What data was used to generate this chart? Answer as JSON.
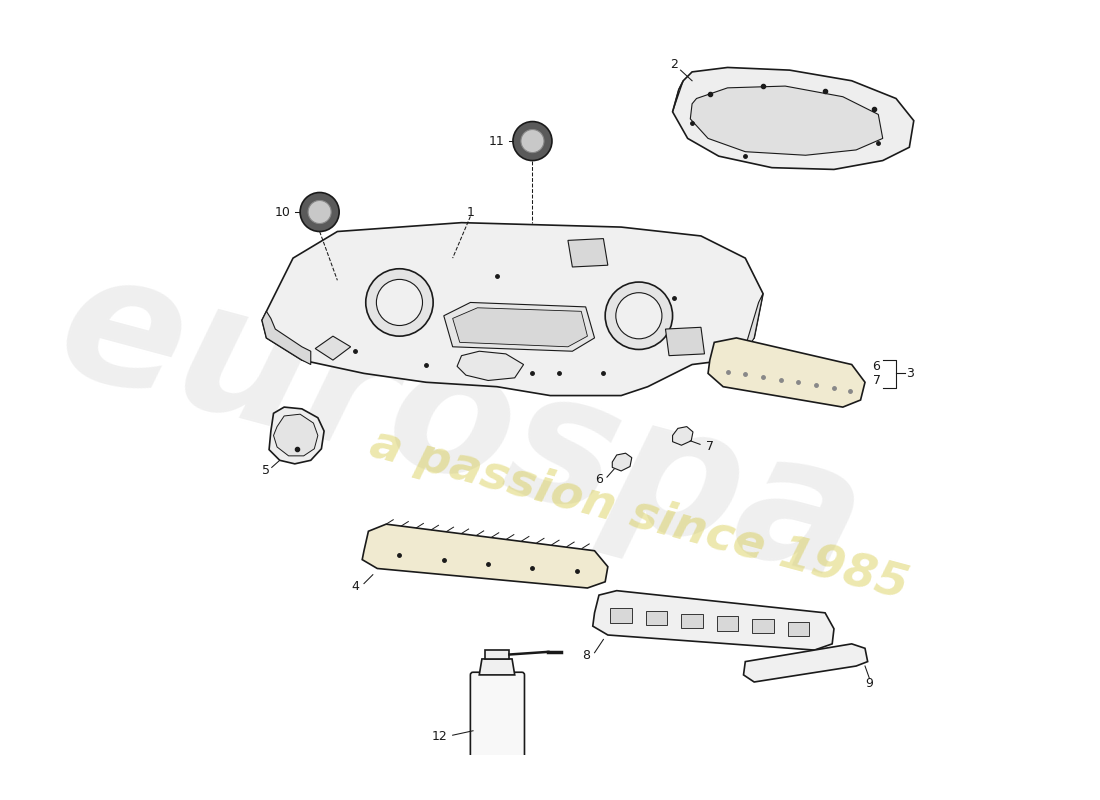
{
  "background_color": "#ffffff",
  "line_color": "#1a1a1a",
  "fill_floor": "#f0f0f0",
  "fill_shadow": "#d8d8d8",
  "fill_yellow": "#f0ead0",
  "fill_light": "#eeeeee",
  "watermark1_text": "eurospa",
  "watermark1_color": "#cccccc",
  "watermark1_alpha": 0.3,
  "watermark2_text": "a passion since 1985",
  "watermark2_color": "#d4c840",
  "watermark2_alpha": 0.42,
  "label_fontsize": 9
}
